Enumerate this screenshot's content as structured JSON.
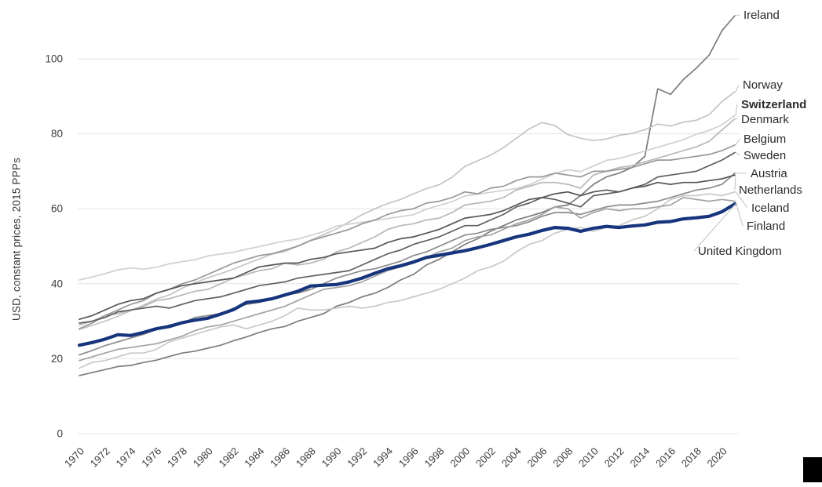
{
  "chart_data": {
    "type": "line",
    "title": "",
    "xlabel": "",
    "ylabel": "USD, constant prices, 2015 PPPs",
    "x_start": 1970,
    "x_end": 2021,
    "x_tick_step": 2,
    "x_tick_labels": [
      "1970",
      "1972",
      "1974",
      "1976",
      "1978",
      "1980",
      "1982",
      "1984",
      "1986",
      "1988",
      "1990",
      "1992",
      "1994",
      "1996",
      "1998",
      "2000",
      "2002",
      "2004",
      "2006",
      "2008",
      "2010",
      "2012",
      "2014",
      "2016",
      "2018",
      "2020"
    ],
    "y_ticks": [
      0,
      20,
      40,
      60,
      80,
      100
    ],
    "ylim": [
      0,
      115
    ],
    "grid": "horizontal",
    "gridline_color": "#e3e3e3",
    "axis_text_color": "#3c3c3c",
    "leader_line_color": "#c2c2c2",
    "highlight_series": "United Kingdom",
    "highlight_color": "#17357c",
    "legend_position": "right-edge-labels",
    "series": [
      {
        "name": "Ireland",
        "color": "#7d7d7d",
        "width": 1.7,
        "bold_label": false,
        "values": [
          15.5,
          16.3,
          17.1,
          17.9,
          18.2,
          19.0,
          19.6,
          20.6,
          21.5,
          22.0,
          22.8,
          23.6,
          24.8,
          25.8,
          27.0,
          28.0,
          28.6,
          30.0,
          31.0,
          32.0,
          34.0,
          35.0,
          36.5,
          37.5,
          39.0,
          41.0,
          42.5,
          45.0,
          46.5,
          48.5,
          50.5,
          52.0,
          54.0,
          55.5,
          57.0,
          58.0,
          59.0,
          60.5,
          61.0,
          63.5,
          66.5,
          68.5,
          69.5,
          71.0,
          74.0,
          92.0,
          90.5,
          94.5,
          97.5,
          101.0,
          107.5,
          111.5
        ]
      },
      {
        "name": "Norway",
        "color": "#c4c4c4",
        "width": 1.7,
        "bold_label": false,
        "values": [
          27.8,
          28.9,
          30.0,
          31.3,
          32.8,
          34.3,
          35.9,
          37.0,
          38.8,
          40.3,
          41.6,
          42.7,
          43.9,
          45.3,
          46.6,
          47.9,
          48.6,
          50.1,
          51.6,
          53.1,
          54.6,
          56.5,
          58.4,
          60.0,
          61.4,
          62.5,
          64.0,
          65.4,
          66.4,
          68.4,
          71.3,
          72.8,
          74.3,
          76.3,
          78.8,
          81.3,
          83.0,
          82.2,
          79.8,
          78.8,
          78.2,
          78.6,
          79.6,
          80.1,
          81.1,
          82.6,
          82.1,
          83.1,
          83.6,
          85.1,
          88.6,
          91.2
        ]
      },
      {
        "name": "Switzerland",
        "color": "#d0d0d0",
        "width": 1.7,
        "bold_label": true,
        "values": [
          41.0,
          41.8,
          42.7,
          43.7,
          44.2,
          43.9,
          44.4,
          45.3,
          45.9,
          46.4,
          47.4,
          47.9,
          48.4,
          49.2,
          49.9,
          50.7,
          51.4,
          51.9,
          52.9,
          53.9,
          55.4,
          55.9,
          56.4,
          56.9,
          57.4,
          57.9,
          58.4,
          59.9,
          60.9,
          61.9,
          63.4,
          63.9,
          64.4,
          64.9,
          65.4,
          66.4,
          67.9,
          69.4,
          70.4,
          69.9,
          71.4,
          72.9,
          73.4,
          74.4,
          75.4,
          76.4,
          77.4,
          78.4,
          79.9,
          80.9,
          82.4,
          84.9
        ]
      },
      {
        "name": "Denmark",
        "color": "#b8b8b8",
        "width": 1.7,
        "bold_label": false,
        "values": [
          29.0,
          30.0,
          31.5,
          32.0,
          33.0,
          34.0,
          35.5,
          36.0,
          37.0,
          38.0,
          38.5,
          40.0,
          41.5,
          42.5,
          43.5,
          44.0,
          45.5,
          45.0,
          45.5,
          46.5,
          48.5,
          49.5,
          51.0,
          52.5,
          54.5,
          55.5,
          56.0,
          57.0,
          57.5,
          59.0,
          61.0,
          61.5,
          62.0,
          63.0,
          65.0,
          66.0,
          67.0,
          67.0,
          66.5,
          65.5,
          69.0,
          70.0,
          71.0,
          71.5,
          72.5,
          73.5,
          74.5,
          75.5,
          76.5,
          78.0,
          81.0,
          84.0
        ]
      },
      {
        "name": "Belgium",
        "color": "#989898",
        "width": 1.7,
        "bold_label": false,
        "values": [
          28.0,
          29.5,
          31.5,
          33.0,
          34.5,
          35.5,
          37.5,
          38.5,
          40.0,
          41.0,
          42.5,
          44.0,
          45.5,
          46.5,
          47.5,
          48.0,
          49.0,
          50.0,
          51.5,
          52.5,
          53.5,
          54.5,
          56.0,
          57.0,
          58.5,
          59.5,
          60.0,
          61.5,
          62.0,
          63.0,
          64.5,
          64.0,
          65.5,
          66.0,
          67.5,
          68.5,
          68.5,
          69.5,
          69.0,
          68.5,
          70.0,
          70.0,
          70.5,
          71.0,
          72.0,
          73.0,
          73.0,
          73.5,
          74.0,
          74.5,
          75.5,
          77.0
        ]
      },
      {
        "name": "Sweden",
        "color": "#606060",
        "width": 1.7,
        "bold_label": false,
        "values": [
          29.5,
          30.0,
          31.0,
          32.5,
          33.0,
          33.5,
          34.0,
          33.5,
          34.5,
          35.5,
          36.0,
          36.5,
          37.5,
          38.5,
          39.5,
          40.0,
          40.5,
          41.5,
          42.0,
          42.5,
          43.0,
          43.5,
          45.0,
          46.5,
          48.0,
          49.0,
          50.5,
          51.5,
          52.5,
          54.0,
          55.5,
          55.5,
          57.0,
          58.5,
          60.5,
          61.5,
          63.0,
          62.5,
          61.5,
          60.5,
          63.5,
          64.0,
          64.5,
          65.5,
          66.5,
          68.5,
          69.0,
          69.5,
          70.0,
          71.5,
          73.0,
          75.0
        ]
      },
      {
        "name": "Austria",
        "color": "#8c8c8c",
        "width": 1.7,
        "bold_label": false,
        "values": [
          21.0,
          22.2,
          23.5,
          24.5,
          25.5,
          26.5,
          27.8,
          29.0,
          29.5,
          31.0,
          31.5,
          32.0,
          33.5,
          34.5,
          35.0,
          36.0,
          37.0,
          37.5,
          38.5,
          40.0,
          41.5,
          42.5,
          43.5,
          44.0,
          45.0,
          46.0,
          47.5,
          48.5,
          50.0,
          51.5,
          53.0,
          53.5,
          54.5,
          55.0,
          55.5,
          56.5,
          58.0,
          59.0,
          59.0,
          58.5,
          59.5,
          60.5,
          61.0,
          61.0,
          61.5,
          62.0,
          63.0,
          64.0,
          65.0,
          65.5,
          66.5,
          69.5
        ]
      },
      {
        "name": "Netherlands",
        "color": "#565656",
        "width": 1.7,
        "bold_label": false,
        "values": [
          30.5,
          31.5,
          33.0,
          34.5,
          35.5,
          36.0,
          37.5,
          38.5,
          39.5,
          40.0,
          40.5,
          41.0,
          41.5,
          43.0,
          44.5,
          45.0,
          45.5,
          45.5,
          46.5,
          47.0,
          48.0,
          48.5,
          49.0,
          49.5,
          51.0,
          52.0,
          52.5,
          53.5,
          54.5,
          56.0,
          57.5,
          58.0,
          58.5,
          59.5,
          61.0,
          62.5,
          63.0,
          64.0,
          64.5,
          63.5,
          64.5,
          65.0,
          64.5,
          65.5,
          66.0,
          67.0,
          66.5,
          67.0,
          67.0,
          67.5,
          68.0,
          69.0
        ]
      },
      {
        "name": "Iceland",
        "color": "#c9c9c9",
        "width": 1.7,
        "bold_label": false,
        "values": [
          17.5,
          19.0,
          19.5,
          20.5,
          21.5,
          21.5,
          22.5,
          24.5,
          25.5,
          26.5,
          27.5,
          28.5,
          29.0,
          28.0,
          29.0,
          30.0,
          31.5,
          33.5,
          33.0,
          33.0,
          33.5,
          34.0,
          33.5,
          34.0,
          35.0,
          35.5,
          36.5,
          37.5,
          38.5,
          40.0,
          41.5,
          43.5,
          44.5,
          46.0,
          48.5,
          50.5,
          51.5,
          53.5,
          54.5,
          55.0,
          54.0,
          55.0,
          55.5,
          57.0,
          58.0,
          60.0,
          62.5,
          63.5,
          63.5,
          64.0,
          63.5,
          64.5
        ]
      },
      {
        "name": "Finland",
        "color": "#a3a3a3",
        "width": 1.7,
        "bold_label": false,
        "values": [
          19.5,
          20.5,
          21.5,
          22.5,
          23.0,
          23.5,
          24.0,
          25.0,
          26.0,
          27.5,
          28.5,
          29.0,
          30.0,
          31.0,
          32.0,
          33.0,
          34.0,
          35.5,
          37.0,
          38.5,
          39.0,
          39.5,
          40.5,
          42.0,
          43.5,
          44.5,
          45.5,
          47.0,
          48.5,
          49.5,
          51.5,
          52.5,
          53.0,
          54.5,
          56.0,
          57.0,
          58.5,
          60.5,
          60.0,
          57.5,
          59.0,
          60.0,
          59.5,
          60.0,
          60.0,
          60.5,
          61.0,
          63.0,
          62.5,
          62.0,
          62.5,
          62.0
        ]
      },
      {
        "name": "United Kingdom",
        "color": "#17357c",
        "width": 4.2,
        "bold_label": false,
        "values": [
          23.6,
          24.3,
          25.2,
          26.4,
          26.2,
          27.0,
          28.0,
          28.6,
          29.6,
          30.3,
          30.8,
          31.9,
          33.1,
          35.0,
          35.4,
          36.0,
          37.0,
          38.0,
          39.4,
          39.6,
          39.8,
          40.5,
          41.5,
          42.8,
          44.0,
          44.8,
          45.8,
          47.0,
          47.6,
          48.2,
          48.8,
          49.6,
          50.5,
          51.5,
          52.5,
          53.2,
          54.2,
          55.0,
          54.8,
          54.0,
          54.8,
          55.3,
          55.0,
          55.4,
          55.7,
          56.4,
          56.6,
          57.3,
          57.6,
          58.0,
          59.2,
          61.3
        ]
      }
    ]
  },
  "decorations": {
    "black_corner_mark_color": "#000000"
  }
}
